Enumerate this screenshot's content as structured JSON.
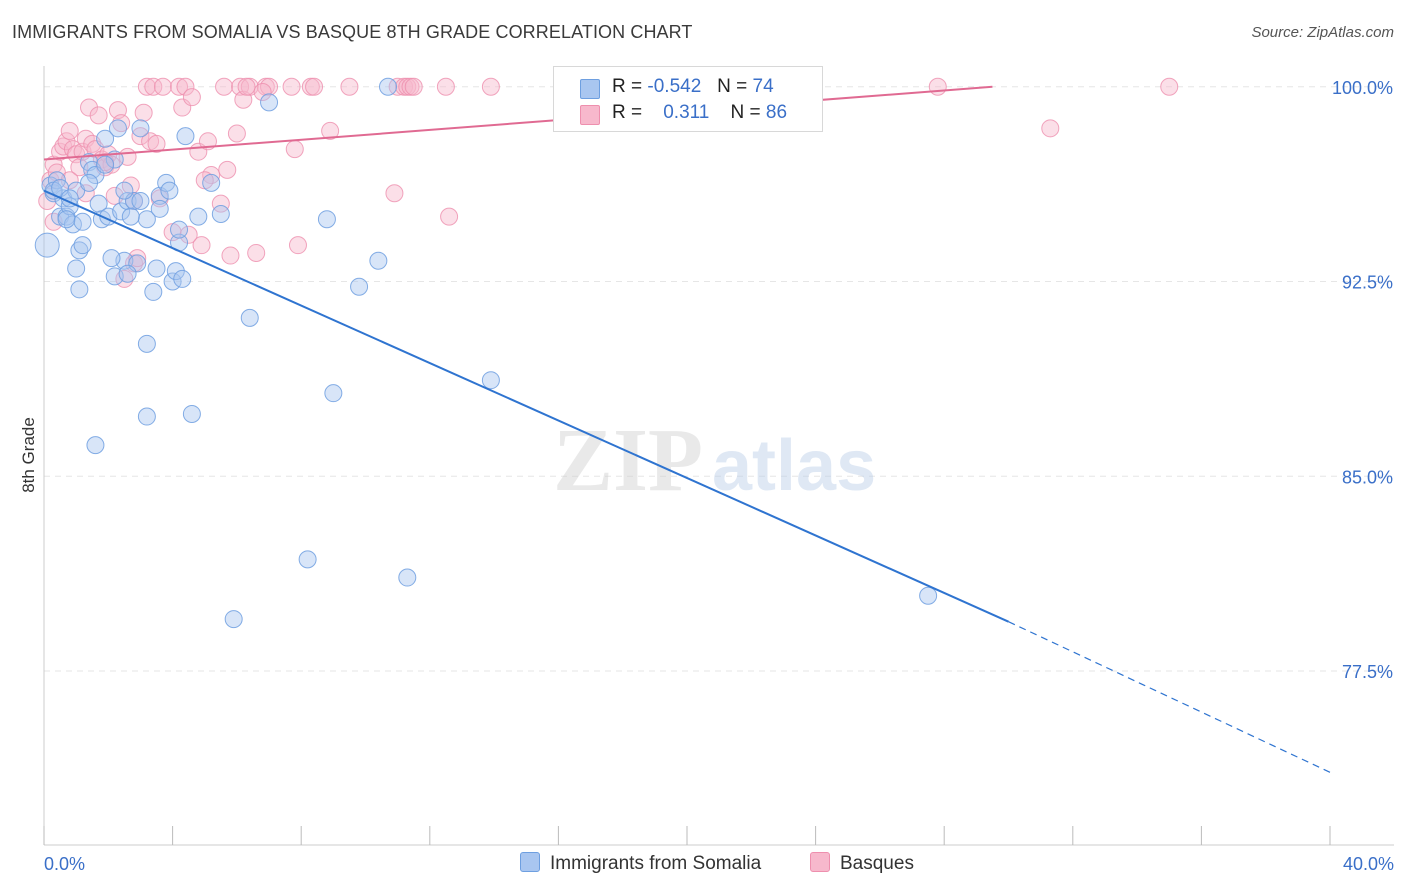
{
  "title": "IMMIGRANTS FROM SOMALIA VS BASQUE 8TH GRADE CORRELATION CHART",
  "source": "Source: ZipAtlas.com",
  "watermark": {
    "zip": "ZIP",
    "atlas": "atlas"
  },
  "legend": {
    "rows": [
      {
        "r_label": "R =",
        "r_value": "-0.542",
        "n_label": "N =",
        "n_value": "74"
      },
      {
        "r_label": "R =",
        "r_value": "0.311",
        "n_label": "N =",
        "n_value": "86"
      }
    ]
  },
  "bottom_legend": [
    "Immigrants from Somalia",
    "Basques"
  ],
  "colors": {
    "somalia_fill": "#a9c6f0",
    "somalia_stroke": "#6e9fe0",
    "somalia_line": "#2f74d0",
    "basque_fill": "#f7b8cc",
    "basque_stroke": "#ee8fae",
    "basque_line": "#e06a92",
    "grid": "#e6e6e6",
    "tick_label": "#3a6fc8"
  },
  "chart_data": {
    "type": "scatter",
    "title": "IMMIGRANTS FROM SOMALIA VS BASQUE 8TH GRADE CORRELATION CHART",
    "xlabel": "",
    "ylabel": "8th Grade",
    "xlim": [
      0,
      40
    ],
    "ylim": [
      70.8,
      100.8
    ],
    "x_tick_labels": [
      "0.0%",
      "40.0%"
    ],
    "y_ticks": [
      77.5,
      85.0,
      92.5,
      100.0
    ],
    "y_tick_labels": [
      "77.5%",
      "85.0%",
      "92.5%",
      "100.0%"
    ],
    "grid": "horizontal dashed",
    "series": [
      {
        "name": "Immigrants from Somalia",
        "r": -0.542,
        "n": 74,
        "trend": {
          "x": [
            0,
            30
          ],
          "y": [
            96.0,
            79.4
          ],
          "dashed_to": [
            40,
            73.6
          ]
        },
        "points": [
          [
            0.1,
            93.9
          ],
          [
            0.2,
            96.2
          ],
          [
            0.3,
            95.9
          ],
          [
            0.4,
            96.4
          ],
          [
            0.5,
            95.0
          ],
          [
            0.6,
            95.7
          ],
          [
            0.7,
            95.0
          ],
          [
            0.8,
            95.4
          ],
          [
            0.9,
            94.7
          ],
          [
            1.0,
            96.0
          ],
          [
            1.1,
            93.7
          ],
          [
            1.2,
            93.9
          ],
          [
            1.4,
            97.1
          ],
          [
            1.5,
            96.8
          ],
          [
            1.6,
            96.6
          ],
          [
            1.7,
            95.5
          ],
          [
            1.8,
            94.9
          ],
          [
            1.9,
            98.0
          ],
          [
            2.0,
            95.0
          ],
          [
            2.2,
            97.2
          ],
          [
            2.3,
            98.4
          ],
          [
            2.4,
            95.2
          ],
          [
            2.5,
            93.3
          ],
          [
            2.6,
            95.6
          ],
          [
            2.8,
            95.6
          ],
          [
            2.9,
            93.2
          ],
          [
            3.0,
            98.4
          ],
          [
            3.2,
            94.9
          ],
          [
            3.4,
            92.1
          ],
          [
            3.5,
            93.0
          ],
          [
            3.6,
            95.8
          ],
          [
            3.8,
            96.3
          ],
          [
            3.9,
            96.0
          ],
          [
            4.0,
            92.5
          ],
          [
            4.1,
            92.9
          ],
          [
            4.2,
            94.0
          ],
          [
            4.2,
            94.5
          ],
          [
            4.4,
            98.1
          ],
          [
            4.8,
            95.0
          ],
          [
            5.2,
            96.3
          ],
          [
            5.5,
            95.1
          ],
          [
            3.2,
            90.1
          ],
          [
            1.0,
            93.0
          ],
          [
            1.1,
            92.2
          ],
          [
            2.2,
            92.7
          ],
          [
            2.6,
            92.8
          ],
          [
            6.4,
            91.1
          ],
          [
            7.0,
            99.4
          ],
          [
            8.8,
            94.9
          ],
          [
            9.0,
            88.2
          ],
          [
            9.8,
            92.3
          ],
          [
            10.4,
            93.3
          ],
          [
            13.9,
            88.7
          ],
          [
            3.2,
            87.3
          ],
          [
            4.6,
            87.4
          ],
          [
            1.6,
            86.2
          ],
          [
            8.2,
            81.8
          ],
          [
            11.3,
            81.1
          ],
          [
            5.9,
            79.5
          ],
          [
            27.5,
            80.4
          ],
          [
            10.7,
            100.0
          ],
          [
            0.3,
            96.0
          ],
          [
            0.7,
            94.9
          ],
          [
            1.2,
            94.8
          ],
          [
            2.7,
            95.0
          ],
          [
            3.6,
            95.3
          ],
          [
            4.3,
            92.6
          ],
          [
            1.9,
            97.0
          ],
          [
            2.5,
            96.0
          ],
          [
            0.5,
            96.1
          ],
          [
            3.0,
            95.6
          ],
          [
            1.4,
            96.3
          ],
          [
            2.1,
            93.4
          ],
          [
            0.8,
            95.7
          ]
        ]
      },
      {
        "name": "Basques",
        "r": 0.311,
        "n": 86,
        "trend": {
          "x": [
            0,
            29.5
          ],
          "y": [
            97.2,
            100.0
          ]
        },
        "points": [
          [
            0.1,
            95.6
          ],
          [
            0.2,
            96.4
          ],
          [
            0.3,
            97.0
          ],
          [
            0.4,
            96.7
          ],
          [
            0.5,
            97.5
          ],
          [
            0.6,
            97.7
          ],
          [
            0.7,
            97.9
          ],
          [
            0.8,
            98.3
          ],
          [
            0.9,
            97.6
          ],
          [
            1.0,
            97.4
          ],
          [
            1.1,
            96.9
          ],
          [
            1.2,
            97.5
          ],
          [
            1.3,
            98.0
          ],
          [
            1.4,
            99.2
          ],
          [
            1.5,
            97.8
          ],
          [
            1.6,
            97.6
          ],
          [
            1.7,
            98.9
          ],
          [
            1.8,
            97.2
          ],
          [
            1.9,
            96.9
          ],
          [
            2.0,
            97.4
          ],
          [
            2.1,
            97.0
          ],
          [
            2.2,
            95.8
          ],
          [
            2.3,
            99.1
          ],
          [
            2.4,
            98.6
          ],
          [
            2.6,
            97.3
          ],
          [
            2.8,
            95.6
          ],
          [
            3.0,
            98.1
          ],
          [
            3.1,
            99.0
          ],
          [
            3.3,
            97.9
          ],
          [
            3.5,
            97.8
          ],
          [
            3.2,
            100.0
          ],
          [
            3.4,
            100.0
          ],
          [
            3.7,
            100.0
          ],
          [
            4.2,
            100.0
          ],
          [
            4.3,
            99.2
          ],
          [
            4.4,
            100.0
          ],
          [
            4.6,
            99.6
          ],
          [
            4.8,
            97.5
          ],
          [
            4.9,
            93.9
          ],
          [
            5.1,
            97.9
          ],
          [
            5.2,
            96.6
          ],
          [
            5.5,
            95.5
          ],
          [
            5.6,
            100.0
          ],
          [
            5.8,
            93.5
          ],
          [
            6.0,
            98.2
          ],
          [
            6.1,
            100.0
          ],
          [
            6.2,
            99.5
          ],
          [
            6.4,
            100.0
          ],
          [
            6.6,
            93.6
          ],
          [
            6.9,
            100.0
          ],
          [
            7.7,
            100.0
          ],
          [
            7.8,
            97.6
          ],
          [
            7.9,
            93.9
          ],
          [
            8.3,
            100.0
          ],
          [
            8.4,
            100.0
          ],
          [
            9.5,
            100.0
          ],
          [
            8.9,
            98.3
          ],
          [
            11.0,
            100.0
          ],
          [
            11.2,
            100.0
          ],
          [
            12.5,
            100.0
          ],
          [
            12.6,
            95.0
          ],
          [
            13.9,
            100.0
          ],
          [
            11.3,
            100.0
          ],
          [
            11.4,
            100.0
          ],
          [
            11.5,
            100.0
          ],
          [
            21.0,
            100.0
          ],
          [
            27.8,
            100.0
          ],
          [
            35.0,
            100.0
          ],
          [
            31.3,
            98.4
          ],
          [
            10.9,
            95.9
          ],
          [
            5.0,
            96.4
          ],
          [
            5.7,
            96.8
          ],
          [
            4.0,
            94.4
          ],
          [
            4.5,
            94.3
          ],
          [
            2.8,
            93.2
          ],
          [
            2.9,
            93.4
          ],
          [
            2.5,
            92.6
          ],
          [
            0.3,
            94.8
          ],
          [
            1.9,
            97.1
          ],
          [
            2.7,
            96.2
          ],
          [
            3.6,
            95.7
          ],
          [
            0.8,
            96.4
          ],
          [
            1.3,
            95.9
          ],
          [
            6.3,
            100.0
          ],
          [
            7.0,
            100.0
          ],
          [
            6.8,
            99.8
          ]
        ]
      }
    ]
  }
}
